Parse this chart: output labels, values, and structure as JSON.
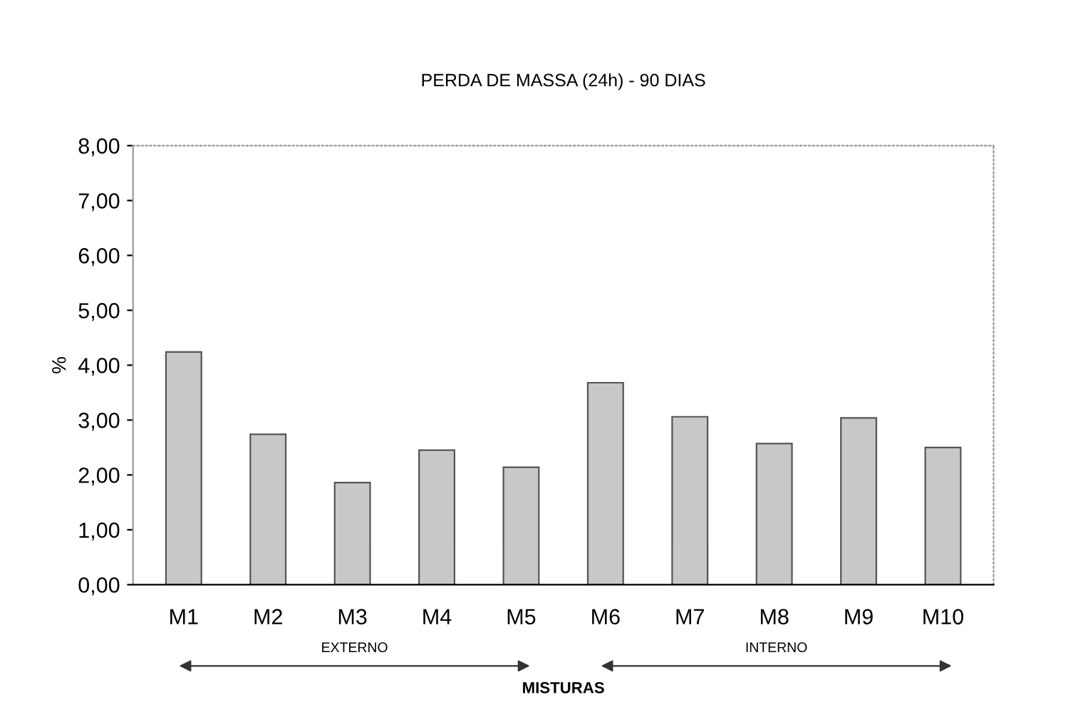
{
  "chart_data": {
    "type": "bar",
    "title": "PERDA DE MASSA (24h) - 90 DIAS",
    "xlabel": "MISTURAS",
    "ylabel": "%",
    "categories": [
      "M1",
      "M2",
      "M3",
      "M4",
      "M5",
      "M6",
      "M7",
      "M8",
      "M9",
      "M10"
    ],
    "values": [
      4.24,
      2.74,
      1.86,
      2.45,
      2.14,
      3.68,
      3.06,
      2.57,
      3.04,
      2.5
    ],
    "color": "#c8c8c8",
    "ylim": [
      0,
      8
    ],
    "yticks": [
      {
        "value": 0,
        "label": "0,00"
      },
      {
        "value": 1,
        "label": "1,00"
      },
      {
        "value": 2,
        "label": "2,00"
      },
      {
        "value": 3,
        "label": "3,00"
      },
      {
        "value": 4,
        "label": "4,00"
      },
      {
        "value": 5,
        "label": "5,00"
      },
      {
        "value": 6,
        "label": "6,00"
      },
      {
        "value": 7,
        "label": "7,00"
      },
      {
        "value": 8,
        "label": "8,00"
      }
    ],
    "annotations": [
      "EXTERNO",
      "INTERNO"
    ],
    "grid": false
  }
}
